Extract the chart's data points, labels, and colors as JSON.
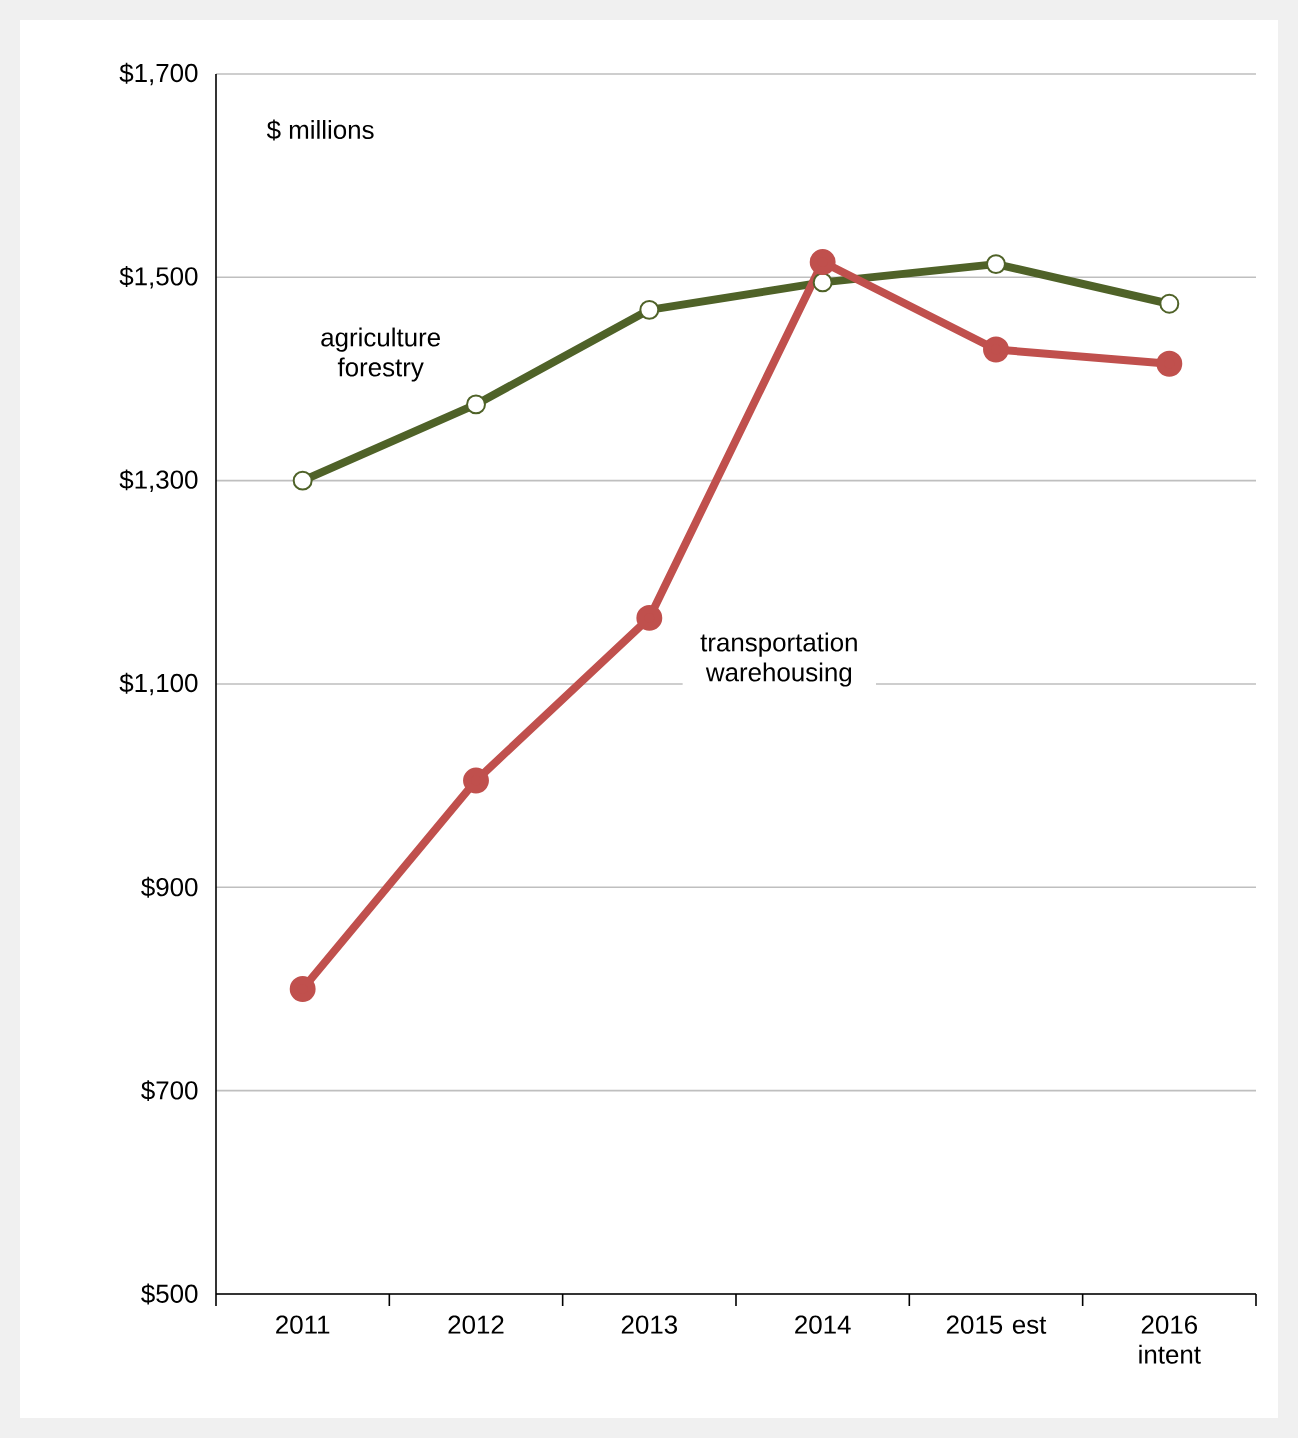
{
  "chart_data": {
    "type": "line",
    "categories": [
      "2011",
      "2012",
      "2013",
      "2014",
      "2015 est",
      "2016 intent"
    ],
    "series": [
      {
        "name": "agriculture forestry",
        "color": "#4f6228",
        "marker": "circle",
        "values": [
          1300,
          1375,
          1468,
          1495,
          1513,
          1474
        ]
      },
      {
        "name": "transportation warehousing",
        "color": "#c0504d",
        "marker": "circle",
        "values": [
          800,
          1005,
          1165,
          1515,
          1429,
          1415
        ]
      }
    ],
    "ylim": [
      500,
      1700
    ],
    "yticks": [
      {
        "value": 500,
        "label": "$500"
      },
      {
        "value": 700,
        "label": "$700"
      },
      {
        "value": 900,
        "label": "$900"
      },
      {
        "value": 1100,
        "label": "$1,100"
      },
      {
        "value": 1300,
        "label": "$1,300"
      },
      {
        "value": 1500,
        "label": "$1,500"
      },
      {
        "value": 1700,
        "label": "$1,700"
      }
    ],
    "grid": "y",
    "line_style": "solid",
    "annotations": [
      "$ millions"
    ]
  }
}
